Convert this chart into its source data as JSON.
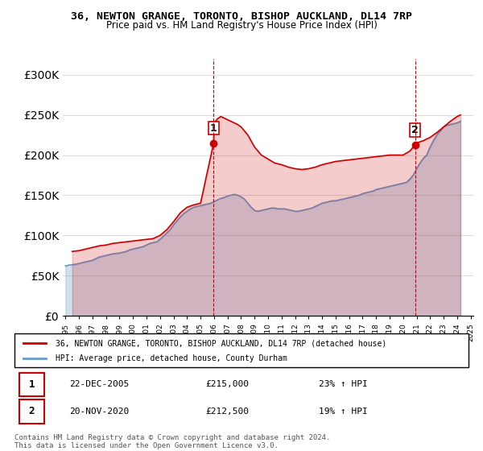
{
  "title": "36, NEWTON GRANGE, TORONTO, BISHOP AUCKLAND, DL14 7RP",
  "subtitle": "Price paid vs. HM Land Registry's House Price Index (HPI)",
  "legend_line1": "36, NEWTON GRANGE, TORONTO, BISHOP AUCKLAND, DL14 7RP (detached house)",
  "legend_line2": "HPI: Average price, detached house, County Durham",
  "annotation1_label": "1",
  "annotation1_date": "22-DEC-2005",
  "annotation1_price": "£215,000",
  "annotation1_hpi": "23% ↑ HPI",
  "annotation1_year": 2005.97,
  "annotation1_value": 215000,
  "annotation2_label": "2",
  "annotation2_date": "20-NOV-2020",
  "annotation2_price": "£212,500",
  "annotation2_hpi": "19% ↑ HPI",
  "annotation2_year": 2020.88,
  "annotation2_value": 212500,
  "house_color": "#cc0000",
  "hpi_color": "#6699cc",
  "vline_color": "#cc0000",
  "dot_color": "#cc0000",
  "background_color": "#ffffff",
  "grid_color": "#dddddd",
  "ylim": [
    0,
    320000
  ],
  "yticks": [
    0,
    50000,
    100000,
    150000,
    200000,
    250000,
    300000
  ],
  "footer": "Contains HM Land Registry data © Crown copyright and database right 2024.\nThis data is licensed under the Open Government Licence v3.0.",
  "hpi_years": [
    1995,
    1995.25,
    1995.5,
    1995.75,
    1996,
    1996.25,
    1996.5,
    1996.75,
    1997,
    1997.25,
    1997.5,
    1997.75,
    1998,
    1998.25,
    1998.5,
    1998.75,
    1999,
    1999.25,
    1999.5,
    1999.75,
    2000,
    2000.25,
    2000.5,
    2000.75,
    2001,
    2001.25,
    2001.5,
    2001.75,
    2002,
    2002.25,
    2002.5,
    2002.75,
    2003,
    2003.25,
    2003.5,
    2003.75,
    2004,
    2004.25,
    2004.5,
    2004.75,
    2005,
    2005.25,
    2005.5,
    2005.75,
    2006,
    2006.25,
    2006.5,
    2006.75,
    2007,
    2007.25,
    2007.5,
    2007.75,
    2008,
    2008.25,
    2008.5,
    2008.75,
    2009,
    2009.25,
    2009.5,
    2009.75,
    2010,
    2010.25,
    2010.5,
    2010.75,
    2011,
    2011.25,
    2011.5,
    2011.75,
    2012,
    2012.25,
    2012.5,
    2012.75,
    2013,
    2013.25,
    2013.5,
    2013.75,
    2014,
    2014.25,
    2014.5,
    2014.75,
    2015,
    2015.25,
    2015.5,
    2015.75,
    2016,
    2016.25,
    2016.5,
    2016.75,
    2017,
    2017.25,
    2017.5,
    2017.75,
    2018,
    2018.25,
    2018.5,
    2018.75,
    2019,
    2019.25,
    2019.5,
    2019.75,
    2020,
    2020.25,
    2020.5,
    2020.75,
    2021,
    2021.25,
    2021.5,
    2021.75,
    2022,
    2022.25,
    2022.5,
    2022.75,
    2023,
    2023.25,
    2023.5,
    2023.75,
    2024,
    2024.25
  ],
  "hpi_values": [
    62000,
    63000,
    63500,
    64000,
    65000,
    66000,
    67000,
    68000,
    69000,
    71000,
    73000,
    74000,
    75000,
    76000,
    77000,
    77500,
    78000,
    79000,
    80000,
    82000,
    83000,
    84000,
    85000,
    86000,
    88000,
    90000,
    91000,
    92000,
    95000,
    99000,
    103000,
    107000,
    113000,
    118000,
    123000,
    127000,
    130000,
    133000,
    135000,
    136000,
    137000,
    138000,
    139000,
    140000,
    142000,
    144000,
    146000,
    147000,
    149000,
    150000,
    151000,
    150000,
    148000,
    145000,
    140000,
    135000,
    131000,
    130000,
    131000,
    132000,
    133000,
    134000,
    134000,
    133000,
    133000,
    133000,
    132000,
    131000,
    130000,
    130000,
    131000,
    132000,
    133000,
    134000,
    136000,
    138000,
    140000,
    141000,
    142000,
    143000,
    143000,
    144000,
    145000,
    146000,
    147000,
    148000,
    149000,
    150000,
    152000,
    153000,
    154000,
    155000,
    157000,
    158000,
    159000,
    160000,
    161000,
    162000,
    163000,
    164000,
    165000,
    166000,
    170000,
    175000,
    183000,
    190000,
    196000,
    200000,
    210000,
    218000,
    225000,
    230000,
    235000,
    237000,
    238000,
    239000,
    240000,
    242000
  ],
  "house_years": [
    1995.5,
    1995.75,
    1996.0,
    1996.25,
    1996.5,
    1997.0,
    1997.5,
    1998.0,
    1998.5,
    1999.0,
    1999.5,
    2000.0,
    2000.5,
    2001.0,
    2001.5,
    2002.0,
    2002.5,
    2003.0,
    2003.5,
    2004.0,
    2004.5,
    2005.0,
    2005.97,
    2006.0,
    2006.25,
    2006.5,
    2006.75,
    2007.0,
    2007.25,
    2007.5,
    2007.75,
    2008.0,
    2008.5,
    2009.0,
    2009.5,
    2010.0,
    2010.5,
    2011.0,
    2011.5,
    2012.0,
    2012.5,
    2013.0,
    2013.5,
    2014.0,
    2014.5,
    2015.0,
    2015.5,
    2016.0,
    2016.5,
    2017.0,
    2017.5,
    2018.0,
    2018.5,
    2019.0,
    2019.5,
    2020.0,
    2020.5,
    2020.88,
    2021.0,
    2021.5,
    2022.0,
    2022.5,
    2023.0,
    2023.5,
    2024.0,
    2024.25
  ],
  "house_values": [
    80000,
    80500,
    81000,
    82000,
    83000,
    85000,
    87000,
    88000,
    90000,
    91000,
    92000,
    93000,
    94000,
    95000,
    96000,
    100000,
    107000,
    117000,
    128000,
    135000,
    138000,
    140000,
    215000,
    240000,
    245000,
    248000,
    246000,
    244000,
    242000,
    240000,
    238000,
    235000,
    225000,
    210000,
    200000,
    195000,
    190000,
    188000,
    185000,
    183000,
    182000,
    183000,
    185000,
    188000,
    190000,
    192000,
    193000,
    194000,
    195000,
    196000,
    197000,
    198000,
    199000,
    200000,
    200000,
    200000,
    205000,
    212500,
    215000,
    218000,
    222000,
    228000,
    235000,
    242000,
    248000,
    250000
  ]
}
